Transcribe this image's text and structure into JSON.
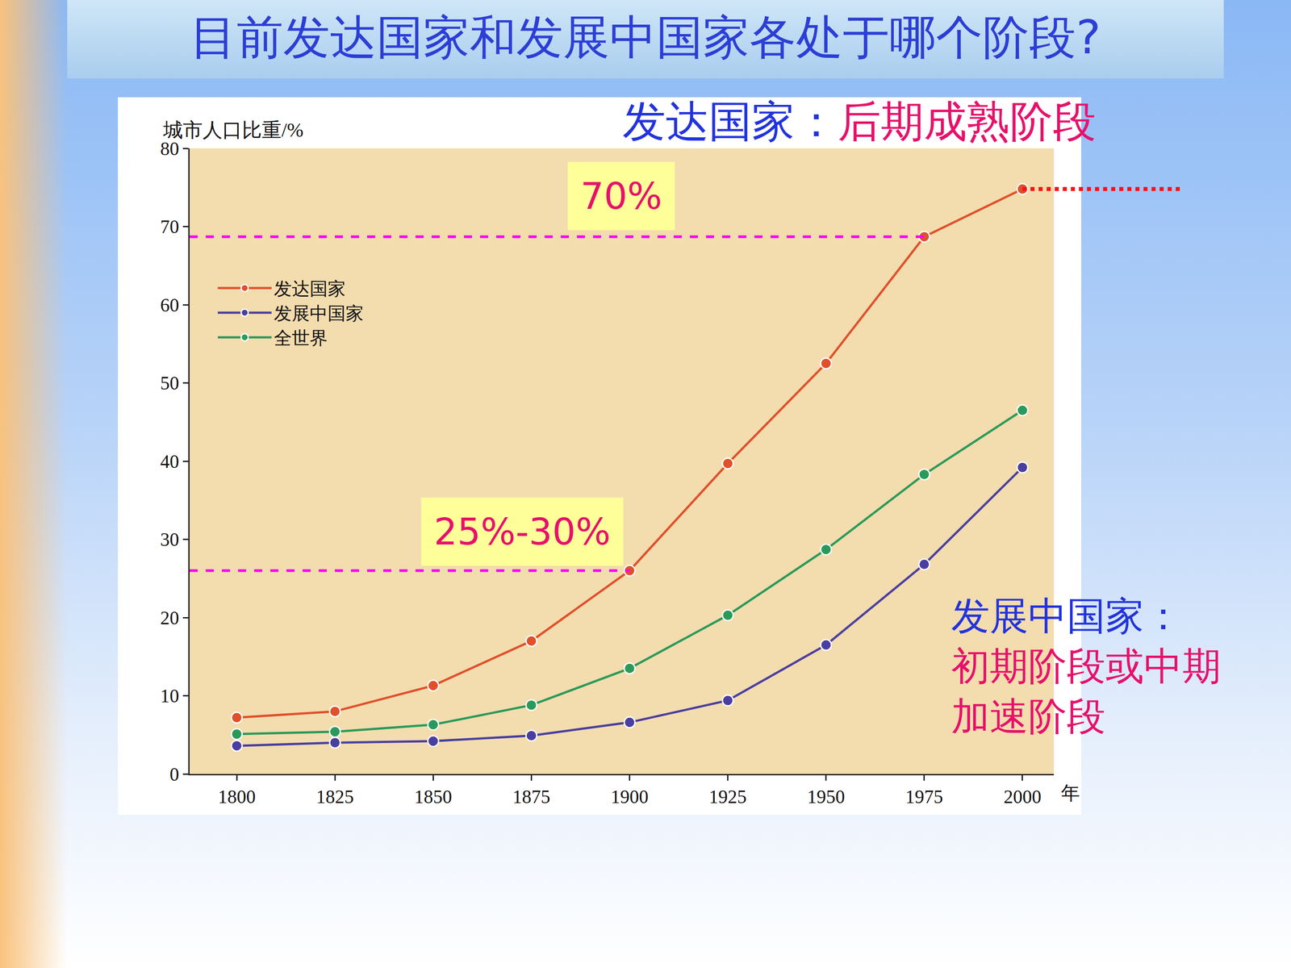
{
  "chart_data": {
    "type": "line",
    "title": "目前发达国家和发展中国家各处于哪个阶段?",
    "ylabel": "城市人口比重/%",
    "xlabel": "年",
    "x": [
      1800,
      1825,
      1850,
      1875,
      1900,
      1925,
      1950,
      1975,
      2000
    ],
    "series": [
      {
        "name": "发达国家",
        "color": "#e0502a",
        "values": [
          7.2,
          8.0,
          11.3,
          17.0,
          26.0,
          39.7,
          52.5,
          68.7,
          74.8
        ]
      },
      {
        "name": "发展中国家",
        "color": "#4a3fa0",
        "values": [
          3.6,
          4.0,
          4.2,
          4.9,
          6.6,
          9.4,
          16.5,
          26.8,
          39.2
        ]
      },
      {
        "name": "全世界",
        "color": "#2a9a5a",
        "values": [
          5.1,
          5.4,
          6.3,
          8.8,
          13.5,
          20.3,
          28.7,
          38.3,
          46.5
        ]
      }
    ],
    "xlim": [
      1788,
      2008
    ],
    "xticks": [
      1800,
      1825,
      1850,
      1875,
      1900,
      1925,
      1950,
      1975,
      2000
    ],
    "ylim": [
      0,
      80
    ],
    "yticks": [
      0,
      10,
      20,
      30,
      40,
      50,
      60,
      70,
      80
    ],
    "grid": false,
    "legend": "upper left",
    "marker": "circle",
    "annotations": [
      {
        "text": "70%",
        "x": 1975,
        "series": "发达国家"
      },
      {
        "text": "25%-30%",
        "x": 1900,
        "series": "发达国家"
      }
    ],
    "stage_notes": [
      {
        "group": "发达国家：",
        "stage": "后期成熟阶段"
      },
      {
        "group": "发展中国家：",
        "stage": "初期阶段或中期加速阶段"
      }
    ]
  }
}
